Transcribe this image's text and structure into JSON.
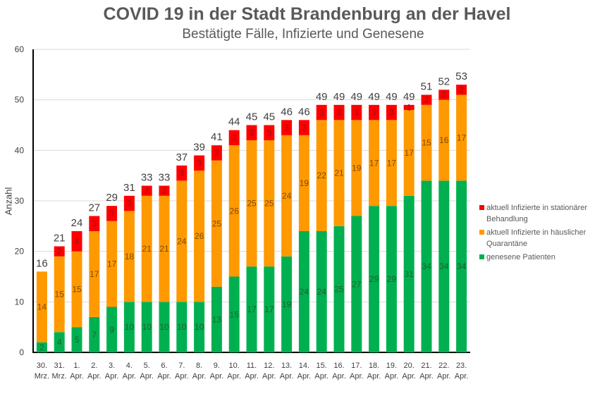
{
  "chart_data": {
    "type": "bar",
    "stacked": true,
    "title": "COVID 19 in der Stadt Brandenburg an der Havel",
    "subtitle": "Bestätigte Fälle, Infizierte und Genesene",
    "xlabel": "",
    "ylabel": "Anzahl",
    "ylim": [
      0,
      60
    ],
    "yticks": [
      0,
      10,
      20,
      30,
      40,
      50,
      60
    ],
    "grid": true,
    "legend_position": "right",
    "categories": [
      [
        "30.",
        "Mrz."
      ],
      [
        "31.",
        "Mrz."
      ],
      [
        "1.",
        "Apr."
      ],
      [
        "2.",
        "Apr."
      ],
      [
        "3.",
        "Apr."
      ],
      [
        "4.",
        "Apr."
      ],
      [
        "5.",
        "Apr."
      ],
      [
        "6.",
        "Apr."
      ],
      [
        "7.",
        "Apr."
      ],
      [
        "8.",
        "Apr."
      ],
      [
        "9.",
        "Apr."
      ],
      [
        "10.",
        "Apr."
      ],
      [
        "11.",
        "Apr."
      ],
      [
        "12.",
        "Apr."
      ],
      [
        "13.",
        "Apr."
      ],
      [
        "14.",
        "Apr."
      ],
      [
        "15.",
        "Apr."
      ],
      [
        "16.",
        "Apr."
      ],
      [
        "17.",
        "Apr."
      ],
      [
        "18.",
        "Apr."
      ],
      [
        "19.",
        "Apr."
      ],
      [
        "20.",
        "Apr."
      ],
      [
        "21.",
        "Apr."
      ],
      [
        "22.",
        "Apr."
      ],
      [
        "23.",
        "Apr."
      ]
    ],
    "series": [
      {
        "name": "genesene Patienten",
        "color": "#00b050",
        "label_color": "#1f5f33",
        "values": [
          2,
          4,
          5,
          7,
          9,
          10,
          10,
          10,
          10,
          10,
          13,
          15,
          17,
          17,
          19,
          24,
          24,
          25,
          27,
          29,
          29,
          31,
          34,
          34,
          34
        ]
      },
      {
        "name": "aktuell Infizierte in häuslicher Quarantäne",
        "color": "#ff9900",
        "label_color": "#7f4a00",
        "values": [
          14,
          15,
          15,
          17,
          17,
          18,
          21,
          21,
          24,
          26,
          25,
          26,
          25,
          25,
          24,
          19,
          22,
          21,
          19,
          17,
          17,
          17,
          15,
          16,
          17
        ]
      },
      {
        "name": "aktuell Infizierte in stationärer Behandlung",
        "color": "#ff0000",
        "label_color": "#9a1010",
        "values": [
          0,
          2,
          4,
          3,
          3,
          3,
          2,
          2,
          3,
          3,
          3,
          3,
          3,
          3,
          3,
          3,
          3,
          3,
          3,
          3,
          3,
          1,
          2,
          2,
          2
        ]
      }
    ],
    "totals": [
      16,
      21,
      24,
      27,
      29,
      31,
      33,
      33,
      37,
      39,
      41,
      44,
      45,
      45,
      46,
      46,
      49,
      49,
      49,
      49,
      49,
      49,
      51,
      52,
      53
    ]
  },
  "legend": [
    {
      "label": "aktuell Infizierte in stationärer Behandlung",
      "color": "#ff0000"
    },
    {
      "label": "aktuell Infizierte in häuslicher Quarantäne",
      "color": "#ff9900"
    },
    {
      "label": "genesene Patienten",
      "color": "#00b050"
    }
  ]
}
